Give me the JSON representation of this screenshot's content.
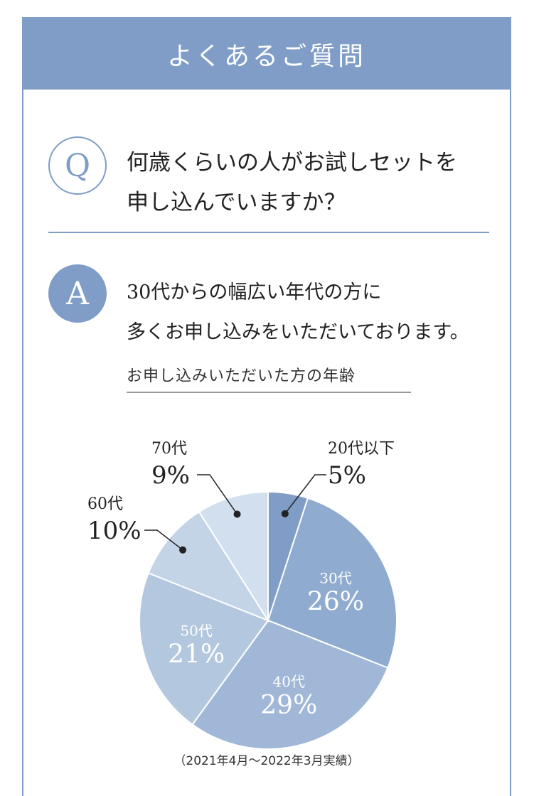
{
  "header": {
    "title": "よくあるご質問"
  },
  "question": {
    "badge": "Q",
    "line1": "何歳くらいの人がお試しセットを",
    "line2": "申し込んでいますか？"
  },
  "answer": {
    "badge": "A",
    "line1": "30代からの幅広い年代の方に",
    "line2": "多くお申し込みをいただいております。"
  },
  "chart_title": "お申し込みいただいた方の年齢",
  "footnote": "（2021年4月～2022年3月実績）",
  "colors": {
    "accent": "#7f9dc6",
    "slice_colors": [
      "#7f9dc6",
      "#8fabd0",
      "#a0b7d7",
      "#b3c7df",
      "#c4d4e7",
      "#d2dfee"
    ]
  },
  "chart_data": {
    "type": "pie",
    "title": "お申し込みいただいた方の年齢",
    "categories": [
      "20代以下",
      "30代",
      "40代",
      "50代",
      "60代",
      "70代"
    ],
    "values": [
      5,
      26,
      29,
      21,
      10,
      9
    ],
    "value_labels": [
      "5%",
      "26%",
      "29%",
      "21%",
      "10%",
      "9%"
    ],
    "label_placement": [
      "outside",
      "inside",
      "inside",
      "inside",
      "outside",
      "outside"
    ]
  }
}
